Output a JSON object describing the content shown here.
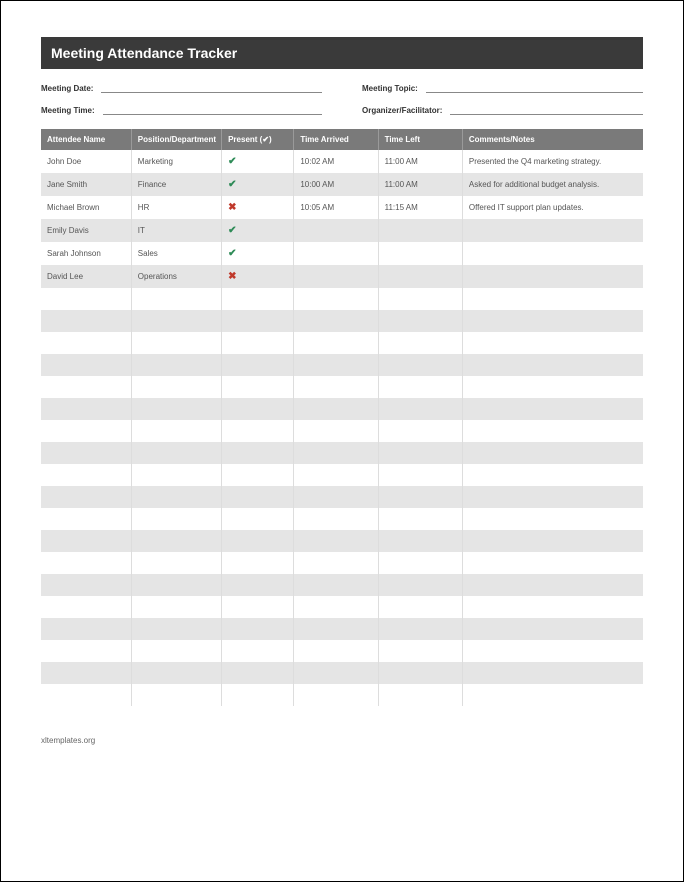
{
  "title": "Meeting Attendance Tracker",
  "meta": {
    "date_label": "Meeting Date:",
    "time_label": "Meeting Time:",
    "topic_label": "Meeting Topic:",
    "organizer_label": "Organizer/Facilitator:"
  },
  "table": {
    "columns": {
      "name": "Attendee Name",
      "position": "Position/Department",
      "present": "Present (✔)",
      "arrived": "Time Arrived",
      "left": "Time Left",
      "comments": "Comments/Notes"
    },
    "column_widths": [
      "15%",
      "15%",
      "12%",
      "14%",
      "14%",
      "30%"
    ],
    "header_bg": "#7a7a7a",
    "header_fg": "#ffffff",
    "row_odd_bg": "#ffffff",
    "row_even_bg": "#e5e5e5",
    "font_size_pt": 8,
    "present_color": "#2e8b57",
    "absent_color": "#c0392b",
    "rows": [
      {
        "name": "John Doe",
        "position": "Marketing",
        "present": true,
        "arrived": "10:02 AM",
        "left": "11:00 AM",
        "comments": "Presented the Q4 marketing strategy."
      },
      {
        "name": "Jane Smith",
        "position": "Finance",
        "present": true,
        "arrived": "10:00 AM",
        "left": "11:00 AM",
        "comments": "Asked for additional budget analysis."
      },
      {
        "name": "Michael Brown",
        "position": "HR",
        "present": false,
        "arrived": "10:05 AM",
        "left": "11:15 AM",
        "comments": "Offered IT support plan updates."
      },
      {
        "name": "Emily Davis",
        "position": "IT",
        "present": true,
        "arrived": "",
        "left": "",
        "comments": ""
      },
      {
        "name": "Sarah Johnson",
        "position": "Sales",
        "present": true,
        "arrived": "",
        "left": "",
        "comments": ""
      },
      {
        "name": "David Lee",
        "position": "Operations",
        "present": false,
        "arrived": "",
        "left": "",
        "comments": ""
      }
    ],
    "blank_rows": 19
  },
  "footer": "xltemplates.org",
  "title_bar_bg": "#3a3a3a",
  "title_bar_fg": "#ffffff"
}
